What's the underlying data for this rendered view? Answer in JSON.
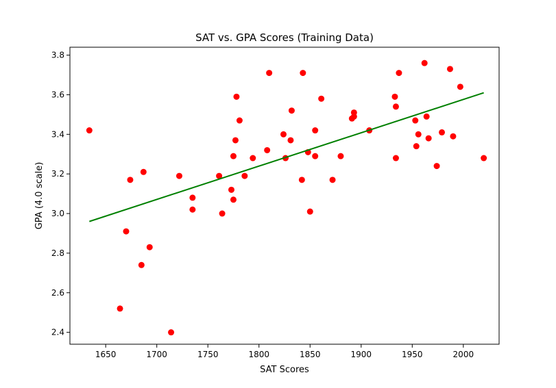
{
  "chart_data": {
    "type": "scatter",
    "title": "SAT vs. GPA Scores (Training Data)",
    "xlabel": "SAT Scores",
    "ylabel": "GPA (4.0 scale)",
    "xlim": [
      1615,
      2035
    ],
    "ylim": [
      2.34,
      3.84
    ],
    "xticks": [
      1650,
      1700,
      1750,
      1800,
      1850,
      1900,
      1950,
      2000
    ],
    "yticks": [
      2.4,
      2.6,
      2.8,
      3.0,
      3.2,
      3.4,
      3.6,
      3.8
    ],
    "xtick_labels": [
      "1650",
      "1700",
      "1750",
      "1800",
      "1850",
      "1900",
      "1950",
      "2000"
    ],
    "ytick_labels": [
      "2.4",
      "2.6",
      "2.8",
      "3.0",
      "3.2",
      "3.4",
      "3.6",
      "3.8"
    ],
    "grid": false,
    "colors": {
      "points": "#ff0000",
      "line": "#008000"
    },
    "series": [
      {
        "type": "scatter",
        "points": [
          [
            1634,
            3.42
          ],
          [
            1664,
            2.52
          ],
          [
            1670,
            2.91
          ],
          [
            1674,
            3.17
          ],
          [
            1685,
            2.74
          ],
          [
            1687,
            3.21
          ],
          [
            1693,
            2.83
          ],
          [
            1714,
            2.4
          ],
          [
            1722,
            3.19
          ],
          [
            1735,
            3.08
          ],
          [
            1735,
            3.02
          ],
          [
            1761,
            3.19
          ],
          [
            1764,
            3.0
          ],
          [
            1773,
            3.12
          ],
          [
            1775,
            3.07
          ],
          [
            1775,
            3.29
          ],
          [
            1777,
            3.37
          ],
          [
            1778,
            3.59
          ],
          [
            1781,
            3.47
          ],
          [
            1786,
            3.19
          ],
          [
            1794,
            3.28
          ],
          [
            1808,
            3.32
          ],
          [
            1810,
            3.71
          ],
          [
            1824,
            3.4
          ],
          [
            1826,
            3.28
          ],
          [
            1831,
            3.37
          ],
          [
            1832,
            3.52
          ],
          [
            1842,
            3.17
          ],
          [
            1843,
            3.71
          ],
          [
            1848,
            3.31
          ],
          [
            1850,
            3.01
          ],
          [
            1855,
            3.42
          ],
          [
            1855,
            3.29
          ],
          [
            1861,
            3.58
          ],
          [
            1872,
            3.17
          ],
          [
            1880,
            3.29
          ],
          [
            1891,
            3.48
          ],
          [
            1893,
            3.51
          ],
          [
            1893,
            3.49
          ],
          [
            1908,
            3.42
          ],
          [
            1933,
            3.59
          ],
          [
            1934,
            3.54
          ],
          [
            1934,
            3.28
          ],
          [
            1937,
            3.71
          ],
          [
            1953,
            3.47
          ],
          [
            1954,
            3.34
          ],
          [
            1956,
            3.4
          ],
          [
            1962,
            3.76
          ],
          [
            1964,
            3.49
          ],
          [
            1966,
            3.38
          ],
          [
            1974,
            3.24
          ],
          [
            1979,
            3.41
          ],
          [
            1987,
            3.73
          ],
          [
            1990,
            3.39
          ],
          [
            1997,
            3.64
          ],
          [
            2020,
            3.28
          ]
        ]
      },
      {
        "type": "line",
        "points": [
          [
            1634,
            2.96
          ],
          [
            2020,
            3.61
          ]
        ]
      }
    ]
  }
}
